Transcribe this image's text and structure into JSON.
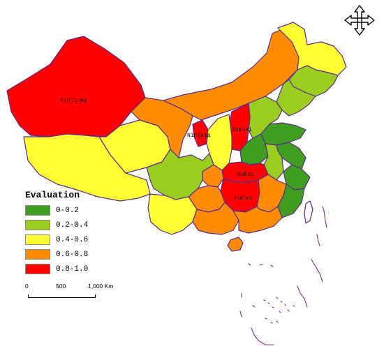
{
  "legend": {
    "title": "Evaluation",
    "items": [
      {
        "label": "0-0.2",
        "color": "#3f9e1e"
      },
      {
        "label": "0.2-0.4",
        "color": "#9bcd1e"
      },
      {
        "label": "0.4-0.6",
        "color": "#ffff33"
      },
      {
        "label": "0.6-0.8",
        "color": "#ff8c00"
      },
      {
        "label": "0.8-1.0",
        "color": "#ff0000"
      }
    ]
  },
  "scale": {
    "tick_0": "0",
    "tick_500": "500",
    "tick_1000": "1,000 Km"
  },
  "labels": {
    "xinjiang": "Xinjiang",
    "ningxia": "Ningxia",
    "shanxi": "Shanxi",
    "hubei": "Hubei",
    "hunan": "Hunan"
  },
  "compass_icon": "four-arrow-compass-icon"
}
